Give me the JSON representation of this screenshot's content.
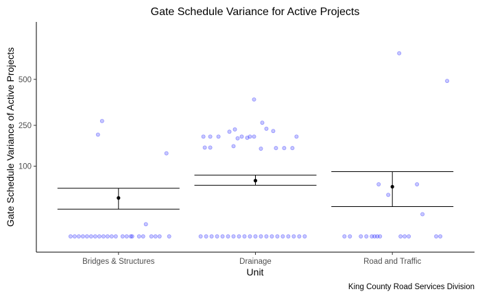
{
  "chart_data": {
    "type": "scatter",
    "title": "Gate Schedule Variance for Active Projects",
    "xlabel": "Unit",
    "ylabel": "Gate Schedule Variance of Active Projects",
    "caption": "King County Road Services Division",
    "categories": [
      "Bridges & Structures",
      "Drainage",
      "Road and Traffic"
    ],
    "y_scale": "sqrt",
    "ylim": [
      0,
      700
    ],
    "y_ticks": [
      100,
      250,
      500
    ],
    "grid": false,
    "colors": {
      "point": "#0000ff",
      "summary": "#000000"
    },
    "groups": [
      {
        "name": "Bridges & Structures",
        "mean": 30,
        "ci": [
          15,
          47
        ],
        "points": [
          {
            "x": 0.85,
            "y": 210
          },
          {
            "x": 0.88,
            "y": 270
          },
          {
            "x": 1.35,
            "y": 140
          },
          {
            "x": 1.2,
            "y": 3
          },
          {
            "x": 0.65,
            "y": 0
          },
          {
            "x": 0.68,
            "y": 0
          },
          {
            "x": 0.71,
            "y": 0
          },
          {
            "x": 0.74,
            "y": 0
          },
          {
            "x": 0.77,
            "y": 0
          },
          {
            "x": 0.8,
            "y": 0
          },
          {
            "x": 0.83,
            "y": 0
          },
          {
            "x": 0.86,
            "y": 0
          },
          {
            "x": 0.89,
            "y": 0
          },
          {
            "x": 0.92,
            "y": 0
          },
          {
            "x": 0.95,
            "y": 0
          },
          {
            "x": 0.98,
            "y": 0
          },
          {
            "x": 1.03,
            "y": 0
          },
          {
            "x": 1.06,
            "y": 0
          },
          {
            "x": 1.09,
            "y": 0
          },
          {
            "x": 1.15,
            "y": 0
          },
          {
            "x": 1.18,
            "y": 0
          },
          {
            "x": 1.24,
            "y": 0
          },
          {
            "x": 1.27,
            "y": 0
          },
          {
            "x": 1.3,
            "y": 0
          },
          {
            "x": 1.37,
            "y": 0
          },
          {
            "x": 1.1,
            "y": 0
          }
        ]
      },
      {
        "name": "Drainage",
        "mean": 63,
        "ci": [
          53,
          76
        ],
        "points": [
          {
            "x": 1.99,
            "y": 380
          },
          {
            "x": 2.05,
            "y": 262
          },
          {
            "x": 1.81,
            "y": 222
          },
          {
            "x": 1.85,
            "y": 232
          },
          {
            "x": 2.13,
            "y": 225
          },
          {
            "x": 2.08,
            "y": 235
          },
          {
            "x": 1.62,
            "y": 202
          },
          {
            "x": 1.67,
            "y": 202
          },
          {
            "x": 1.73,
            "y": 202
          },
          {
            "x": 1.87,
            "y": 195
          },
          {
            "x": 1.9,
            "y": 202
          },
          {
            "x": 1.94,
            "y": 197
          },
          {
            "x": 1.96,
            "y": 202
          },
          {
            "x": 1.99,
            "y": 202
          },
          {
            "x": 2.3,
            "y": 202
          },
          {
            "x": 1.63,
            "y": 160
          },
          {
            "x": 1.67,
            "y": 160
          },
          {
            "x": 1.84,
            "y": 165
          },
          {
            "x": 2.04,
            "y": 156
          },
          {
            "x": 2.15,
            "y": 158
          },
          {
            "x": 2.21,
            "y": 158
          },
          {
            "x": 2.27,
            "y": 158
          },
          {
            "x": 1.6,
            "y": 0
          },
          {
            "x": 1.64,
            "y": 0
          },
          {
            "x": 1.68,
            "y": 0
          },
          {
            "x": 1.72,
            "y": 0
          },
          {
            "x": 1.76,
            "y": 0
          },
          {
            "x": 1.8,
            "y": 0
          },
          {
            "x": 1.84,
            "y": 0
          },
          {
            "x": 1.88,
            "y": 0
          },
          {
            "x": 1.92,
            "y": 0
          },
          {
            "x": 1.96,
            "y": 0
          },
          {
            "x": 2.0,
            "y": 0
          },
          {
            "x": 2.04,
            "y": 0
          },
          {
            "x": 2.08,
            "y": 0
          },
          {
            "x": 2.12,
            "y": 0
          },
          {
            "x": 2.16,
            "y": 0
          },
          {
            "x": 2.2,
            "y": 0
          },
          {
            "x": 2.24,
            "y": 0
          },
          {
            "x": 2.28,
            "y": 0
          },
          {
            "x": 2.32,
            "y": 0
          },
          {
            "x": 2.36,
            "y": 0
          }
        ]
      },
      {
        "name": "Road and Traffic",
        "mean": 50,
        "ci": [
          18,
          85
        ],
        "points": [
          {
            "x": 3.05,
            "y": 680
          },
          {
            "x": 3.4,
            "y": 490
          },
          {
            "x": 2.9,
            "y": 55
          },
          {
            "x": 3.18,
            "y": 55
          },
          {
            "x": 2.97,
            "y": 35
          },
          {
            "x": 3.22,
            "y": 10
          },
          {
            "x": 2.65,
            "y": 0
          },
          {
            "x": 2.69,
            "y": 0
          },
          {
            "x": 2.77,
            "y": 0
          },
          {
            "x": 2.81,
            "y": 0
          },
          {
            "x": 2.85,
            "y": 0
          },
          {
            "x": 2.87,
            "y": 0
          },
          {
            "x": 2.89,
            "y": 0
          },
          {
            "x": 2.91,
            "y": 0
          },
          {
            "x": 3.06,
            "y": 0
          },
          {
            "x": 3.09,
            "y": 0
          },
          {
            "x": 3.12,
            "y": 0
          },
          {
            "x": 3.32,
            "y": 0
          },
          {
            "x": 3.35,
            "y": 0
          }
        ]
      }
    ]
  }
}
